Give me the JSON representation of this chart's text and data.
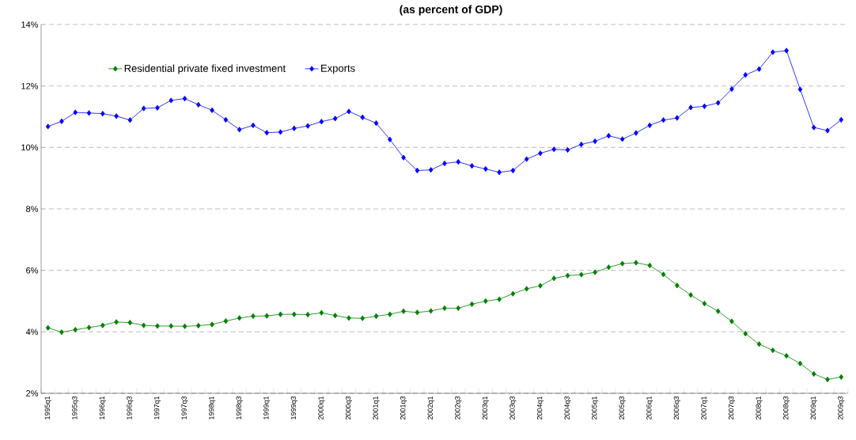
{
  "chart_data": {
    "type": "line",
    "title": "(as percent of GDP)",
    "categories": [
      "1995q1",
      null,
      "1995q3",
      null,
      "1996q1",
      null,
      "1996q3",
      null,
      "1997q1",
      null,
      "1997q3",
      null,
      "1998q1",
      null,
      "1998q3",
      null,
      "1999q1",
      null,
      "1999q3",
      null,
      "2000q1",
      null,
      "2000q3",
      null,
      "2001q1",
      null,
      "2001q3",
      null,
      "2002q1",
      null,
      "2002q3",
      null,
      "2003q1",
      null,
      "2003q3",
      null,
      "2004q1",
      null,
      "2004q3",
      null,
      "2005q1",
      null,
      "2005q3",
      null,
      "2006q1",
      null,
      "2006q3",
      null,
      "2007q1",
      null,
      "2007q3",
      null,
      "2008q1",
      null,
      "2008q3",
      null,
      "2009q1",
      null,
      "2009q3"
    ],
    "series": [
      {
        "name": "Residential private fixed investment",
        "color": "#008000",
        "values": [
          4.13,
          3.99,
          4.07,
          4.14,
          4.21,
          4.32,
          4.3,
          4.21,
          4.19,
          4.19,
          4.18,
          4.2,
          4.24,
          4.35,
          4.45,
          4.51,
          4.52,
          4.57,
          4.57,
          4.56,
          4.62,
          4.53,
          4.45,
          4.44,
          4.51,
          4.57,
          4.67,
          4.63,
          4.68,
          4.77,
          4.77,
          4.9,
          5.0,
          5.06,
          5.24,
          5.4,
          5.5,
          5.74,
          5.83,
          5.86,
          5.94,
          6.1,
          6.22,
          6.25,
          6.16,
          5.87,
          5.51,
          5.2,
          4.92,
          4.67,
          4.34,
          3.94,
          3.6,
          3.4,
          3.22,
          2.97,
          2.63,
          2.45,
          2.53
        ]
      },
      {
        "name": "Exports",
        "color": "#0000ff",
        "values": [
          10.68,
          10.85,
          11.14,
          11.12,
          11.1,
          11.02,
          10.89,
          11.27,
          11.29,
          11.53,
          11.59,
          11.39,
          11.21,
          10.9,
          10.58,
          10.72,
          10.48,
          10.5,
          10.62,
          10.7,
          10.84,
          10.94,
          11.17,
          10.98,
          10.79,
          10.26,
          9.67,
          9.25,
          9.27,
          9.48,
          9.53,
          9.4,
          9.3,
          9.19,
          9.25,
          9.62,
          9.81,
          9.94,
          9.92,
          10.1,
          10.2,
          10.38,
          10.27,
          10.47,
          10.72,
          10.89,
          10.96,
          11.3,
          11.34,
          11.45,
          11.9,
          12.36,
          12.55,
          13.1,
          13.15,
          11.89,
          10.65,
          10.55,
          10.9
        ]
      }
    ],
    "ylim": [
      2,
      14
    ],
    "yticks": [
      {
        "value": 2,
        "label": "2%"
      },
      {
        "value": 4,
        "label": "4%"
      },
      {
        "value": 6,
        "label": "6%"
      },
      {
        "value": 8,
        "label": "8%"
      },
      {
        "value": 10,
        "label": "10%"
      },
      {
        "value": 12,
        "label": "12%"
      },
      {
        "value": 14,
        "label": "14%"
      }
    ],
    "grid": "y",
    "legend": "top left",
    "marker": "diamond",
    "line_style": "solid"
  }
}
